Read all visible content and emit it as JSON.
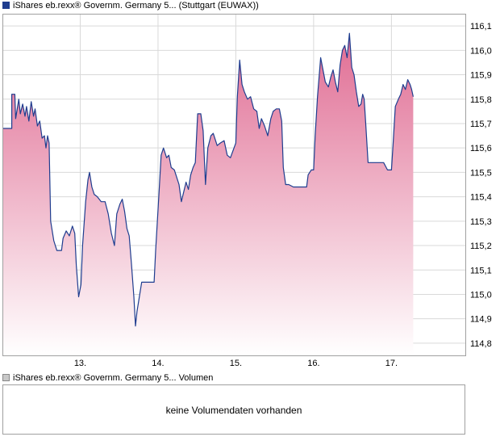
{
  "legend": {
    "price": "iShares eb.rexx® Governm. Germany 5... (Stuttgart (EUWAX))",
    "volume": "iShares eb.rexx® Governm. Germany 5... Volumen"
  },
  "volume_panel": {
    "message": "keine Volumendaten vorhanden"
  },
  "colors": {
    "line": "#1f3d8f",
    "fill_top": "#e06c93",
    "fill_bottom": "#ffffff",
    "grid": "#d9d9d9",
    "frame": "#a0a0a0"
  },
  "chart_data": {
    "type": "area",
    "x_tick_labels": [
      "13.",
      "14.",
      "15.",
      "16.",
      "17."
    ],
    "y_tick_labels": [
      "116,1",
      "116,0",
      "115,9",
      "115,8",
      "115,7",
      "115,6",
      "115,5",
      "115,4",
      "115,3",
      "115,2",
      "115,1",
      "115,0",
      "114,9",
      "114,8"
    ],
    "ylim": [
      114.75,
      116.15
    ],
    "xlim": [
      0,
      5.95
    ],
    "grid": true,
    "series": [
      {
        "values": [
          [
            0.0,
            115.68
          ],
          [
            0.12,
            115.68
          ],
          [
            0.12,
            115.82
          ],
          [
            0.16,
            115.82
          ],
          [
            0.17,
            115.72
          ],
          [
            0.21,
            115.8
          ],
          [
            0.23,
            115.74
          ],
          [
            0.26,
            115.78
          ],
          [
            0.29,
            115.73
          ],
          [
            0.31,
            115.77
          ],
          [
            0.34,
            115.71
          ],
          [
            0.37,
            115.79
          ],
          [
            0.4,
            115.73
          ],
          [
            0.42,
            115.76
          ],
          [
            0.45,
            115.69
          ],
          [
            0.48,
            115.71
          ],
          [
            0.51,
            115.64
          ],
          [
            0.54,
            115.65
          ],
          [
            0.56,
            115.6
          ],
          [
            0.58,
            115.65
          ],
          [
            0.6,
            115.62
          ],
          [
            0.62,
            115.3
          ],
          [
            0.66,
            115.22
          ],
          [
            0.7,
            115.18
          ],
          [
            0.76,
            115.18
          ],
          [
            0.78,
            115.23
          ],
          [
            0.82,
            115.26
          ],
          [
            0.86,
            115.24
          ],
          [
            0.9,
            115.28
          ],
          [
            0.93,
            115.25
          ],
          [
            0.95,
            115.12
          ],
          [
            0.98,
            114.99
          ],
          [
            1.01,
            115.04
          ],
          [
            1.03,
            115.2
          ],
          [
            1.07,
            115.38
          ],
          [
            1.1,
            115.47
          ],
          [
            1.12,
            115.5
          ],
          [
            1.15,
            115.44
          ],
          [
            1.18,
            115.41
          ],
          [
            1.22,
            115.4
          ],
          [
            1.27,
            115.38
          ],
          [
            1.32,
            115.38
          ],
          [
            1.36,
            115.33
          ],
          [
            1.4,
            115.25
          ],
          [
            1.44,
            115.2
          ],
          [
            1.47,
            115.33
          ],
          [
            1.51,
            115.37
          ],
          [
            1.54,
            115.39
          ],
          [
            1.57,
            115.34
          ],
          [
            1.6,
            115.27
          ],
          [
            1.63,
            115.24
          ],
          [
            1.66,
            115.12
          ],
          [
            1.69,
            114.99
          ],
          [
            1.71,
            114.87
          ],
          [
            1.73,
            114.93
          ],
          [
            1.76,
            114.99
          ],
          [
            1.79,
            115.05
          ],
          [
            1.83,
            115.05
          ],
          [
            1.9,
            115.05
          ],
          [
            1.95,
            115.05
          ],
          [
            1.97,
            115.18
          ],
          [
            2.01,
            115.4
          ],
          [
            2.04,
            115.57
          ],
          [
            2.07,
            115.6
          ],
          [
            2.11,
            115.56
          ],
          [
            2.14,
            115.57
          ],
          [
            2.17,
            115.52
          ],
          [
            2.21,
            115.51
          ],
          [
            2.24,
            115.48
          ],
          [
            2.27,
            115.45
          ],
          [
            2.3,
            115.38
          ],
          [
            2.33,
            115.42
          ],
          [
            2.36,
            115.46
          ],
          [
            2.39,
            115.43
          ],
          [
            2.42,
            115.49
          ],
          [
            2.45,
            115.52
          ],
          [
            2.48,
            115.54
          ],
          [
            2.51,
            115.74
          ],
          [
            2.55,
            115.74
          ],
          [
            2.58,
            115.67
          ],
          [
            2.61,
            115.45
          ],
          [
            2.64,
            115.6
          ],
          [
            2.68,
            115.65
          ],
          [
            2.71,
            115.66
          ],
          [
            2.76,
            115.61
          ],
          [
            2.8,
            115.62
          ],
          [
            2.85,
            115.63
          ],
          [
            2.89,
            115.57
          ],
          [
            2.93,
            115.56
          ],
          [
            3.0,
            115.62
          ],
          [
            3.02,
            115.81
          ],
          [
            3.05,
            115.96
          ],
          [
            3.08,
            115.86
          ],
          [
            3.11,
            115.83
          ],
          [
            3.15,
            115.8
          ],
          [
            3.19,
            115.81
          ],
          [
            3.23,
            115.76
          ],
          [
            3.27,
            115.75
          ],
          [
            3.3,
            115.68
          ],
          [
            3.33,
            115.72
          ],
          [
            3.37,
            115.69
          ],
          [
            3.41,
            115.65
          ],
          [
            3.45,
            115.72
          ],
          [
            3.48,
            115.75
          ],
          [
            3.52,
            115.76
          ],
          [
            3.56,
            115.76
          ],
          [
            3.59,
            115.71
          ],
          [
            3.61,
            115.52
          ],
          [
            3.64,
            115.45
          ],
          [
            3.68,
            115.45
          ],
          [
            3.74,
            115.44
          ],
          [
            3.8,
            115.44
          ],
          [
            3.86,
            115.44
          ],
          [
            3.91,
            115.44
          ],
          [
            3.93,
            115.49
          ],
          [
            3.97,
            115.51
          ],
          [
            4.0,
            115.51
          ],
          [
            4.02,
            115.65
          ],
          [
            4.05,
            115.81
          ],
          [
            4.09,
            115.97
          ],
          [
            4.12,
            115.92
          ],
          [
            4.15,
            115.87
          ],
          [
            4.19,
            115.85
          ],
          [
            4.22,
            115.89
          ],
          [
            4.25,
            115.92
          ],
          [
            4.28,
            115.87
          ],
          [
            4.31,
            115.83
          ],
          [
            4.34,
            115.94
          ],
          [
            4.37,
            116.0
          ],
          [
            4.4,
            116.02
          ],
          [
            4.43,
            115.97
          ],
          [
            4.46,
            116.07
          ],
          [
            4.49,
            115.93
          ],
          [
            4.52,
            115.9
          ],
          [
            4.55,
            115.83
          ],
          [
            4.58,
            115.77
          ],
          [
            4.61,
            115.78
          ],
          [
            4.63,
            115.82
          ],
          [
            4.65,
            115.8
          ],
          [
            4.67,
            115.7
          ],
          [
            4.7,
            115.54
          ],
          [
            4.75,
            115.54
          ],
          [
            4.8,
            115.54
          ],
          [
            4.85,
            115.54
          ],
          [
            4.9,
            115.54
          ],
          [
            4.95,
            115.51
          ],
          [
            5.0,
            115.51
          ],
          [
            5.02,
            115.61
          ],
          [
            5.05,
            115.77
          ],
          [
            5.09,
            115.8
          ],
          [
            5.12,
            115.82
          ],
          [
            5.15,
            115.86
          ],
          [
            5.18,
            115.84
          ],
          [
            5.21,
            115.88
          ],
          [
            5.24,
            115.86
          ],
          [
            5.26,
            115.84
          ],
          [
            5.28,
            115.81
          ]
        ]
      }
    ]
  }
}
